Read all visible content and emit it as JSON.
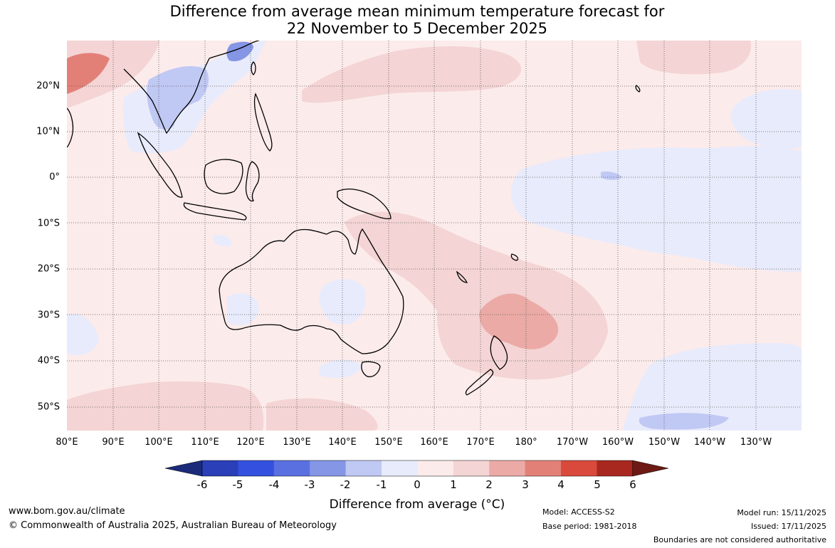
{
  "title_line1": "Difference from average mean minimum temperature forecast for",
  "title_line2": "22 November to 5 December 2025",
  "lat_labels": [
    "20°N",
    "10°N",
    "0°",
    "10°S",
    "20°S",
    "30°S",
    "40°S",
    "50°S"
  ],
  "lon_labels": [
    "80°E",
    "90°E",
    "100°E",
    "110°E",
    "120°E",
    "130°E",
    "140°E",
    "150°E",
    "160°E",
    "170°E",
    "180°",
    "170°W",
    "160°W",
    "150°W",
    "140°W",
    "130°W"
  ],
  "colorbar": {
    "title": "Difference from average (°C)",
    "ticks": [
      "-6",
      "-5",
      "-4",
      "-3",
      "-2",
      "-1",
      "0",
      "1",
      "2",
      "3",
      "4",
      "5",
      "6"
    ],
    "colors": [
      "#1b2b7a",
      "#2a3fb8",
      "#3351de",
      "#5a70e0",
      "#8596e6",
      "#c0c8f4",
      "#e8ebfb",
      "#fcebeb",
      "#f4d4d4",
      "#ebaaa6",
      "#e28078",
      "#d94a3c",
      "#a8281f",
      "#6e1a14"
    ]
  },
  "footer": {
    "website": "www.bom.gov.au/climate",
    "copyright": "© Commonwealth of Australia 2025, Australian Bureau of Meteorology",
    "model": "Model: ACCESS-S2",
    "base_period": "Base period: 1981-2018",
    "model_run": "Model run: 15/11/2025",
    "issued": "Issued: 17/11/2025",
    "disclaimer": "Boundaries are not considered authoritative"
  }
}
